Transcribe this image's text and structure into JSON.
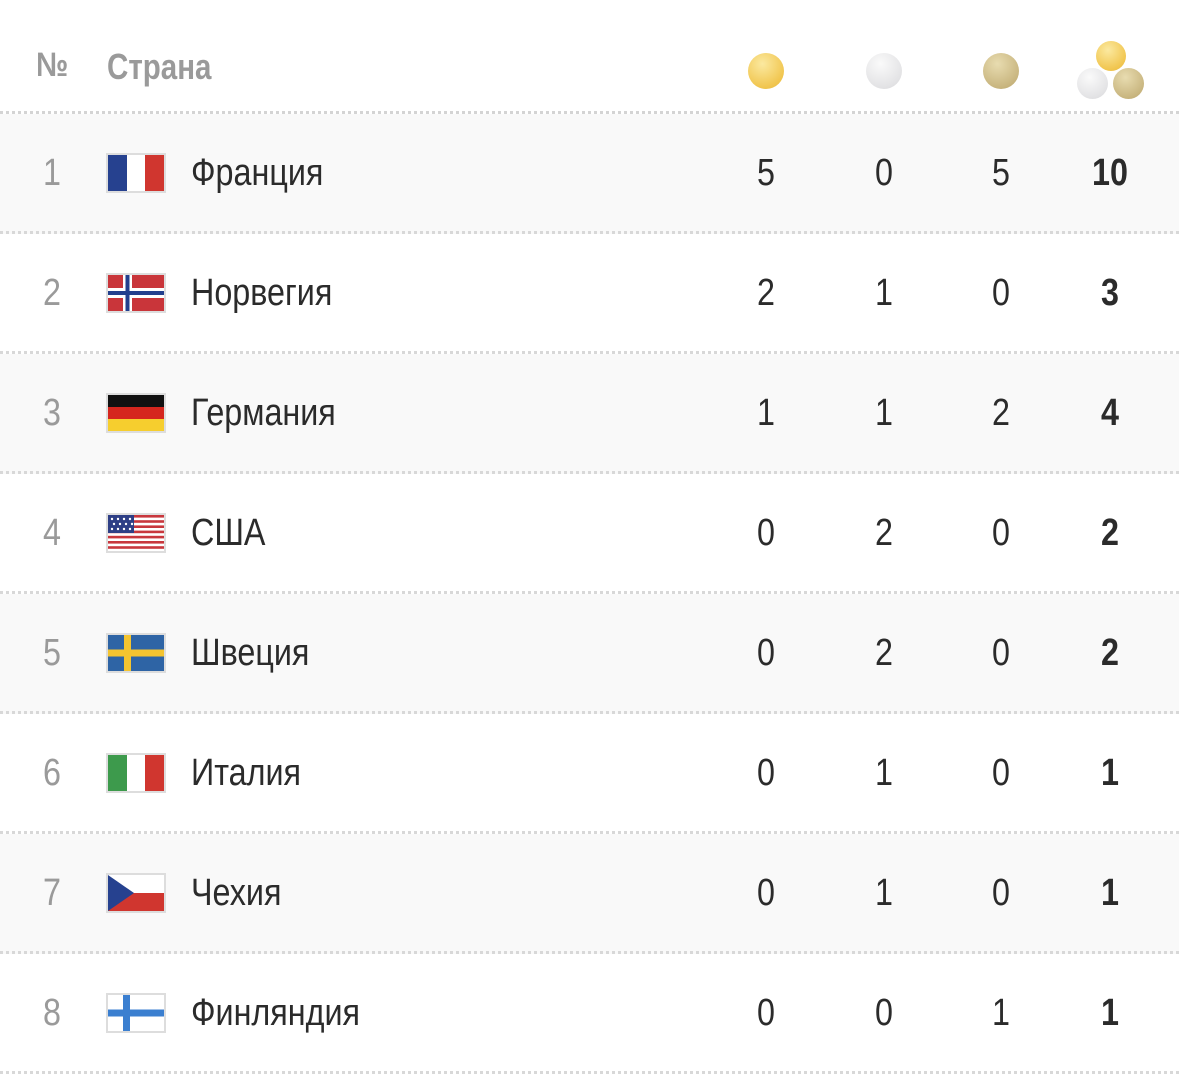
{
  "header": {
    "num_label": "№",
    "country_label": "Страна"
  },
  "rows": [
    {
      "rank": "1",
      "flag": "france",
      "name": "Франция",
      "gold": "5",
      "silver": "0",
      "bronze": "5",
      "total": "10"
    },
    {
      "rank": "2",
      "flag": "norway",
      "name": "Норвегия",
      "gold": "2",
      "silver": "1",
      "bronze": "0",
      "total": "3"
    },
    {
      "rank": "3",
      "flag": "germany",
      "name": "Германия",
      "gold": "1",
      "silver": "1",
      "bronze": "2",
      "total": "4"
    },
    {
      "rank": "4",
      "flag": "usa",
      "name": "США",
      "gold": "0",
      "silver": "2",
      "bronze": "0",
      "total": "2"
    },
    {
      "rank": "5",
      "flag": "sweden",
      "name": "Швеция",
      "gold": "0",
      "silver": "2",
      "bronze": "0",
      "total": "2"
    },
    {
      "rank": "6",
      "flag": "italy",
      "name": "Италия",
      "gold": "0",
      "silver": "1",
      "bronze": "0",
      "total": "1"
    },
    {
      "rank": "7",
      "flag": "czechia",
      "name": "Чехия",
      "gold": "0",
      "silver": "1",
      "bronze": "0",
      "total": "1"
    },
    {
      "rank": "8",
      "flag": "finland",
      "name": "Финляндия",
      "gold": "0",
      "silver": "0",
      "bronze": "1",
      "total": "1"
    }
  ]
}
